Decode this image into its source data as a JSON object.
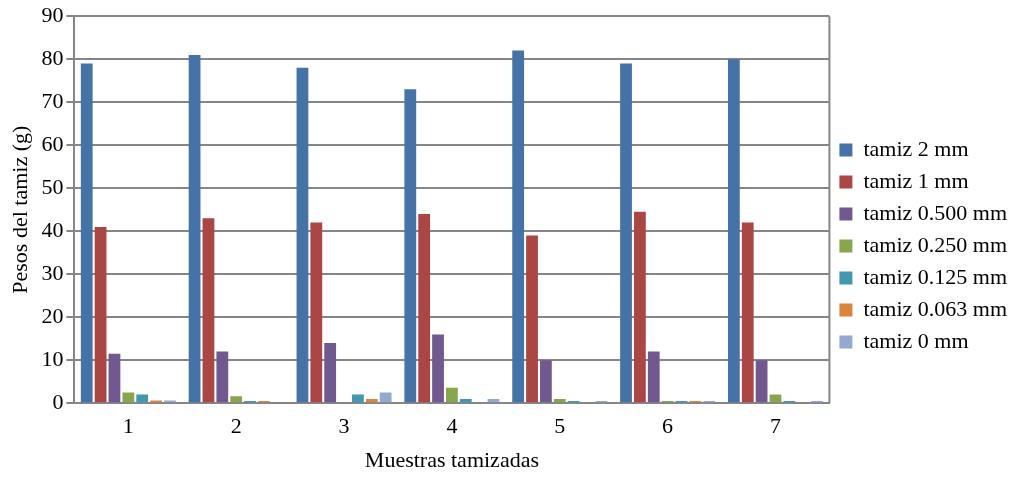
{
  "chart_data": {
    "type": "bar",
    "xlabel": "Muestras tamizadas",
    "ylabel": "Pesos del tamiz (g)",
    "categories": [
      "1",
      "2",
      "3",
      "4",
      "5",
      "6",
      "7"
    ],
    "ylim": [
      0,
      90
    ],
    "yticks": [
      0,
      10,
      20,
      30,
      40,
      50,
      60,
      70,
      80,
      90
    ],
    "grid": "y",
    "legend": "right",
    "series": [
      {
        "name": "tamiz 2 mm",
        "color": "#4572a7",
        "values": [
          79,
          81,
          78,
          73,
          82,
          79,
          80
        ]
      },
      {
        "name": "tamiz 1 mm",
        "color": "#aa4643",
        "values": [
          41,
          43,
          42,
          44,
          39,
          44.5,
          42
        ]
      },
      {
        "name": "tamiz 0.500 mm",
        "color": "#71588f",
        "values": [
          11.5,
          12,
          14,
          16,
          10,
          12,
          10
        ]
      },
      {
        "name": "tamiz 0.250 mm",
        "color": "#89a54e",
        "values": [
          2.5,
          1.6,
          0,
          3.6,
          1,
          0.5,
          2
        ]
      },
      {
        "name": "tamiz 0.125 mm",
        "color": "#4198af",
        "values": [
          2,
          0.5,
          2,
          1,
          0.5,
          0.5,
          0.5
        ]
      },
      {
        "name": "tamiz 0.063 mm",
        "color": "#db843d",
        "values": [
          0.6,
          0.5,
          1,
          0,
          0,
          0.5,
          0
        ]
      },
      {
        "name": "tamiz 0 mm",
        "color": "#93a9cf",
        "values": [
          0.6,
          0,
          2.5,
          1,
          0.5,
          0.5,
          0.5
        ]
      }
    ]
  }
}
